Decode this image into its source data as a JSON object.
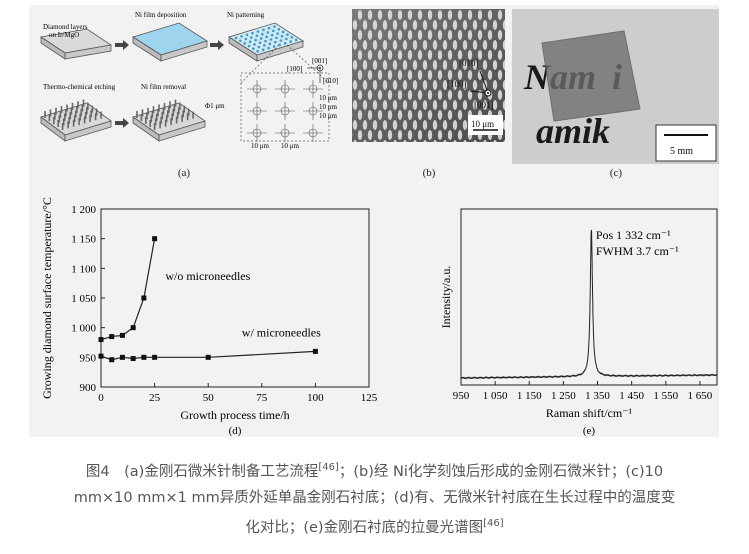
{
  "panel_a": {
    "label": "(a)",
    "steps": [
      "Diamond layers",
      "on Ir/MgO",
      "Ni film deposition",
      "Ni patterning",
      "Thermo-chemical etching",
      "Ni film removal"
    ],
    "dir_001": "[001]",
    "dir_100": "[100]",
    "dir_010": "[010]",
    "phi": "Φ1 μm",
    "dim": "10 μm"
  },
  "panel_b": {
    "label": "(b)",
    "dir_010": "[010]",
    "dir_100": "[100]",
    "dir_001": "[001]",
    "scale": "10 μm"
  },
  "panel_c": {
    "label": "(c)",
    "text1": "Nam",
    "text2": "amik",
    "scale": "5 mm"
  },
  "chart_d": {
    "label": "(d)",
    "chart_data": {
      "type": "line",
      "xlabel": "Growth process time/h",
      "ylabel": "Growing diamond surface temperature/°C",
      "xlim": [
        0,
        125
      ],
      "ylim": [
        900,
        1200
      ],
      "xticks": [
        "0",
        "25",
        "50",
        "75",
        "100",
        "125"
      ],
      "yticks": [
        "900",
        "950",
        "1 000",
        "1 050",
        "1 100",
        "1 150",
        "1 200"
      ],
      "series": [
        {
          "name": "w/o microneedles",
          "x": [
            0,
            5,
            10,
            15,
            20,
            25
          ],
          "y": [
            980,
            985,
            987,
            1000,
            1050,
            1150
          ]
        },
        {
          "name": "w/ microneedles",
          "x": [
            0,
            5,
            10,
            15,
            20,
            25,
            50,
            100
          ],
          "y": [
            952,
            946,
            950,
            948,
            950,
            950,
            950,
            960
          ]
        }
      ]
    }
  },
  "chart_e": {
    "label": "(e)",
    "chart_data": {
      "type": "line",
      "xlabel": "Raman shift/cm⁻¹",
      "ylabel": "Intensity/a.u.",
      "xlim": [
        950,
        1700
      ],
      "xticks": [
        "950",
        "1 050",
        "1 150",
        "1 250",
        "1 350",
        "1 450",
        "1 550",
        "1 650"
      ],
      "annotations": [
        "Pos 1 332 cm⁻¹",
        "FWHM 3.7 cm⁻¹"
      ],
      "peak": 1332,
      "fwhm": 3.7
    }
  },
  "caption": {
    "line1_a": "图4　(a)金刚石微米针制备工艺流程",
    "ref1": "[46]",
    "line1_b": "；(b)经 Ni化学刻蚀后形成的金刚石微米针；(c)10",
    "line2": "mm×10 mm×1 mm异质外延单晶金刚石衬底；(d)有、无微米针衬底在生长过程中的温度变",
    "line3": "化对比；(e)金刚石衬底的拉曼光谱图",
    "ref2": "[46]"
  }
}
